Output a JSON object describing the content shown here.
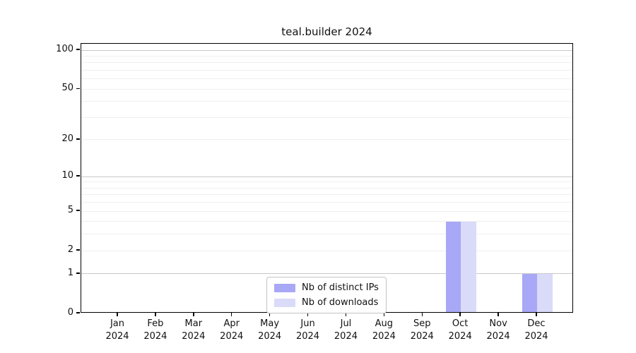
{
  "chart_data": {
    "type": "bar",
    "title": "teal.builder 2024",
    "months": [
      "Jan",
      "Feb",
      "Mar",
      "Apr",
      "May",
      "Jun",
      "Jul",
      "Aug",
      "Sep",
      "Oct",
      "Nov",
      "Dec"
    ],
    "year_label": "2024",
    "series": [
      {
        "name": "Nb of distinct IPs",
        "color": "#a8a8f6",
        "values": [
          0,
          0,
          0,
          0,
          0,
          0,
          0,
          0,
          0,
          4,
          0,
          1
        ]
      },
      {
        "name": "Nb of downloads",
        "color": "#dadaf9",
        "values": [
          0,
          0,
          0,
          0,
          0,
          0,
          0,
          0,
          0,
          4,
          0,
          1
        ]
      }
    ],
    "y_axis": {
      "scale": "log1p",
      "tick_labels": [
        0,
        1,
        2,
        5,
        10,
        20,
        50,
        100
      ],
      "decade_gridlines": [
        1,
        10,
        100
      ],
      "minor_gridlines": [
        2,
        3,
        4,
        5,
        6,
        7,
        8,
        9,
        20,
        30,
        40,
        50,
        60,
        70,
        80,
        90
      ],
      "top_value": 112,
      "decade_grid_color": "#c9c9c9",
      "minor_grid_color": "#efefef"
    },
    "legend_position": "bottom-center",
    "grid": true
  }
}
